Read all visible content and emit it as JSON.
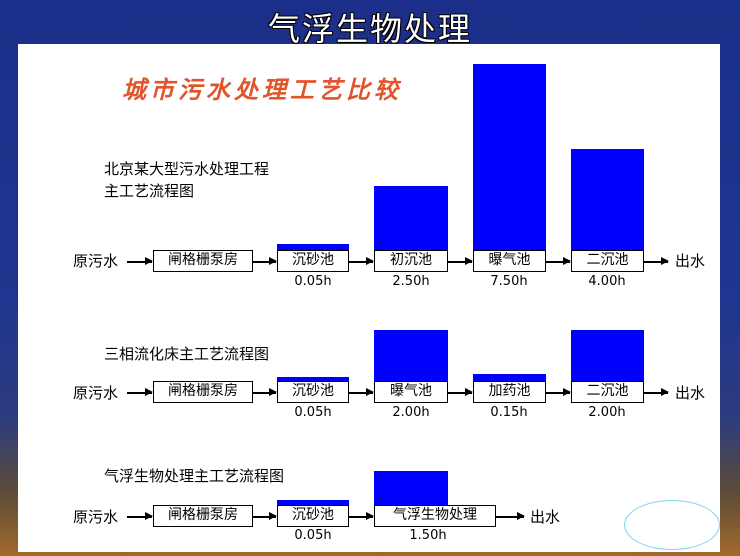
{
  "slide_title": "气浮生物处理",
  "subtitle": "城市污水处理工艺比较",
  "input_label": "原污水",
  "output_label": "出水",
  "bar_color": "#0000ff",
  "accent_color": "#e2542a",
  "flows": [
    {
      "title_lines": [
        "北京某大型污水处理工程",
        "主工艺流程图"
      ],
      "stages": [
        {
          "name": "闸格栅泵房",
          "time": "",
          "hours": 0
        },
        {
          "name": "沉砂池",
          "time": "0.05h",
          "hours": 0.05
        },
        {
          "name": "初沉池",
          "time": "2.50h",
          "hours": 2.5
        },
        {
          "name": "曝气池",
          "time": "7.50h",
          "hours": 7.5
        },
        {
          "name": "二沉池",
          "time": "4.00h",
          "hours": 4.0
        }
      ]
    },
    {
      "title_lines": [
        "三相流化床主工艺流程图"
      ],
      "stages": [
        {
          "name": "闸格栅泵房",
          "time": "",
          "hours": 0
        },
        {
          "name": "沉砂池",
          "time": "0.05h",
          "hours": 0.05
        },
        {
          "name": "曝气池",
          "time": "2.00h",
          "hours": 2.0
        },
        {
          "name": "加药池",
          "time": "0.15h",
          "hours": 0.15
        },
        {
          "name": "二沉池",
          "time": "2.00h",
          "hours": 2.0
        }
      ]
    },
    {
      "title_lines": [
        "气浮生物处理主工艺流程图"
      ],
      "stages": [
        {
          "name": "闸格栅泵房",
          "time": "",
          "hours": 0
        },
        {
          "name": "沉砂池",
          "time": "0.05h",
          "hours": 0.05
        },
        {
          "name": "气浮生物处理",
          "time": "1.50h",
          "hours": 1.5
        }
      ]
    }
  ]
}
